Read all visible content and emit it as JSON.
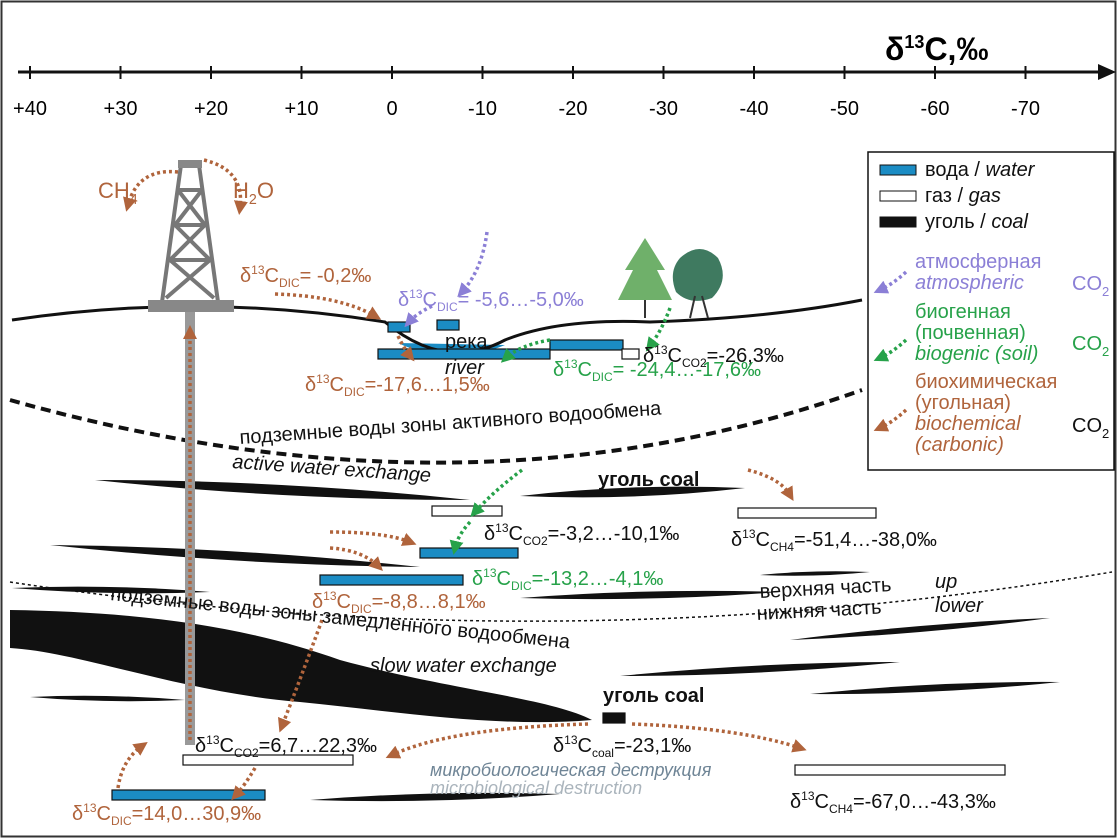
{
  "isotope": {
    "symbol": "δ",
    "mass": "13",
    "element": "C"
  },
  "axis": {
    "unit": ",‰",
    "ticks": [
      "+40",
      "+30",
      "+20",
      "+10",
      "0",
      "-10",
      "-20",
      "-30",
      "-40",
      "-50",
      "-60",
      "-70"
    ]
  },
  "sources": {
    "ch4": {
      "main": "CH",
      "sub": "4"
    },
    "h2o": {
      "main": "H",
      "sub": "2",
      "end": "O"
    }
  },
  "legend": {
    "water": {
      "ru": "вода / ",
      "en": "water"
    },
    "gas": {
      "ru": "газ / ",
      "en": "gas"
    },
    "coal": {
      "ru": "уголь / ",
      "en": "coal"
    },
    "atmospheric": {
      "lines": [
        "атмосферная",
        "atmospheric"
      ],
      "gas": {
        "main": "CO",
        "sub": "2"
      }
    },
    "biogenic": {
      "lines": [
        "биогенная",
        "(почвенная)",
        "biogenic (soil)"
      ],
      "gas": {
        "main": "CO",
        "sub": "2"
      }
    },
    "biochemical": {
      "lines": [
        "биохимическая",
        "(угольная)",
        "biochemical",
        "(carbonic)"
      ],
      "gas": {
        "main": "CO",
        "sub": "2"
      }
    }
  },
  "labels": [
    {
      "sub": "DIC",
      "text": "= -0,2‰"
    },
    {
      "sub": "DIC",
      "text": "= -5,6…-5,0‰"
    },
    {
      "sub": "CO2",
      "text": "=-26,3‰"
    },
    {
      "sub": "DIC",
      "text": "=-17,6…1,5‰"
    },
    {
      "sub": "DIC",
      "text": "= -24,4…-17,6‰"
    },
    {
      "sub": "CO2",
      "text": "=-3,2…-10,1‰"
    },
    {
      "sub": "CH4",
      "text": "=-51,4…-38,0‰"
    },
    {
      "sub": "DIC",
      "text": "=-13,2…-4,1‰"
    },
    {
      "sub": "DIC",
      "text": "=-8,8…8,1‰"
    },
    {
      "sub": "CO2",
      "text": "=6,7…22,3‰"
    },
    {
      "sub": "coal",
      "text": "=-23,1‰"
    },
    {
      "sub": "CH4",
      "text": "=-67,0…-43,3‰"
    },
    {
      "sub": "DIC",
      "text": "=14,0…30,9‰"
    }
  ],
  "texts": {
    "river_ru": "река",
    "river_en": "river",
    "active_ru": "подземные воды зоны активного водообмена",
    "active_en": "active water exchange",
    "coal_upper": "уголь coal",
    "upper_ru": "верхняя часть",
    "upper_en": "up",
    "lower_ru": "нижняя часть",
    "lower_en": "lower",
    "slow_ru": "подземные воды зоны замедленного водообмена",
    "slow_en": "slow water exchange",
    "coal_lower": "уголь coal",
    "micro_ru": "микробиологическая деструкция",
    "micro_en": "microbiological destruction"
  }
}
